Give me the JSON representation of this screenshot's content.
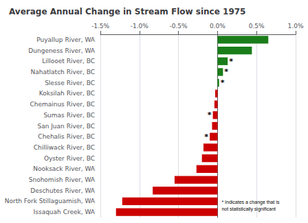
{
  "chart_data": {
    "type": "bar",
    "orientation": "horizontal",
    "title": "Average Annual Change in Stream Flow since 1975",
    "categories": [
      "Puyallup River, WA",
      "Dungeness River, WA",
      "Lillooet River, BC",
      "Nahatlatch River, BC",
      "Slesse River, BC",
      "Koksilah River, BC",
      "Chemainus River, BC",
      "Sumas River, BC",
      "San Juan River, BC",
      "Chehalis River, BC",
      "Chilliwack River, BC",
      "Oyster River, BC",
      "Nooksack River, WA",
      "Snohomish River, WA",
      "Deschutes River, WA",
      "North Fork Stillaguamish, WA",
      "Issaquah Creek, WA"
    ],
    "values": [
      0.65,
      0.44,
      0.13,
      0.07,
      0.02,
      -0.03,
      -0.04,
      -0.06,
      -0.07,
      -0.1,
      -0.18,
      -0.2,
      -0.27,
      -0.55,
      -0.83,
      -1.22,
      -1.3
    ],
    "colors": [
      "#1a7d1a",
      "#1a7d1a",
      "#1a7d1a",
      "#1a7d1a",
      "#1a7d1a",
      "#cc0000",
      "#cc0000",
      "#cc0000",
      "#cc0000",
      "#cc0000",
      "#cc0000",
      "#cc0000",
      "#cc0000",
      "#cc0000",
      "#cc0000",
      "#cc0000",
      "#cc0000"
    ],
    "xlim": [
      -1.5,
      1.0
    ],
    "xticks": [
      {
        "value": -1.5,
        "label": "-1.5%"
      },
      {
        "value": -1.0,
        "label": "-1.0%"
      },
      {
        "value": -0.5,
        "label": "-0.5%"
      },
      {
        "value": 0.0,
        "label": "0.0%"
      },
      {
        "value": 0.5,
        "label": "0.5%"
      },
      {
        "value": 1.0,
        "label": "1.0%"
      }
    ],
    "grid": true,
    "annotations": [
      {
        "category": "Lillooet River, BC",
        "text": "*"
      },
      {
        "category": "Nahatlatch River, BC",
        "text": "*"
      },
      {
        "category": "Slesse River, BC",
        "text": "*"
      },
      {
        "category": "Sumas River, BC",
        "text": "*"
      },
      {
        "category": "Chehalis River, BC",
        "text": "*"
      },
      {
        "text": "* Indicates a change that is\nnot statistically significant"
      }
    ]
  }
}
